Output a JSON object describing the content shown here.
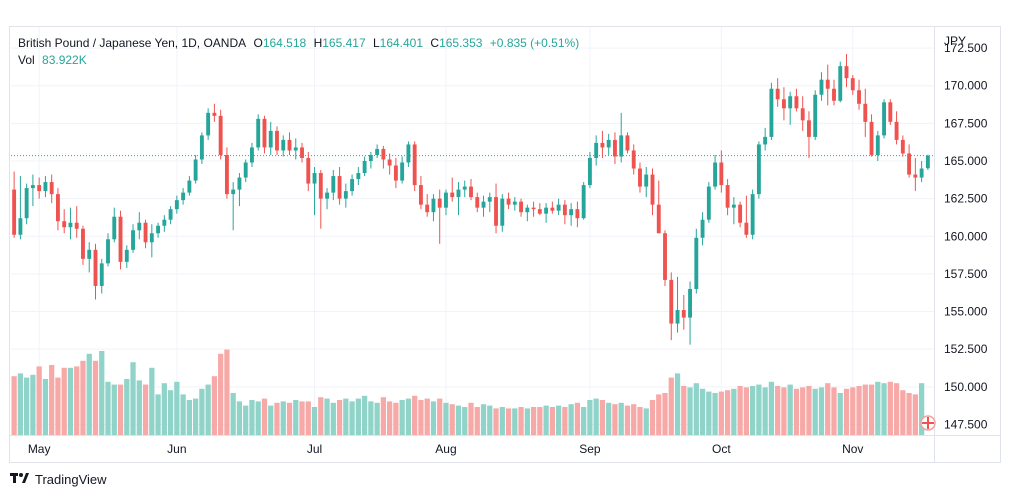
{
  "colors": {
    "up": "#26a69a",
    "down": "#ef5350",
    "vol_up": "#8fd3c9",
    "vol_down": "#f6a9a7",
    "grid": "#f0f3fa",
    "text": "#131722"
  },
  "legend": {
    "title": "British Pound / Japanese Yen, 1D, OANDA",
    "o_label": "O",
    "o_value": "164.518",
    "h_label": "H",
    "h_value": "165.417",
    "l_label": "L",
    "l_value": "164.401",
    "c_label": "C",
    "c_value": "165.353",
    "change": "+0.835 (+0.51%)",
    "vol_label": "Vol",
    "vol_value": "83.922K"
  },
  "footer": {
    "brand": "TradingView",
    "logo": "tradingview-logo-icon"
  },
  "chart_data": {
    "type": "candlestick",
    "currency_label": "JPY",
    "y_ticks": [
      "172.500",
      "170.000",
      "167.500",
      "165.000",
      "162.500",
      "160.000",
      "157.500",
      "155.000",
      "152.500",
      "150.000",
      "147.500"
    ],
    "ylim": [
      146.8,
      173.9
    ],
    "x_ticks": [
      "May",
      "Jun",
      "Jul",
      "Aug",
      "Sep",
      "Oct",
      "Nov"
    ],
    "x_tick_index": [
      4,
      26,
      48,
      69,
      92,
      113,
      134
    ],
    "last_price": 165.353,
    "candles": [
      [
        163.1,
        164.3,
        159.9,
        160.1
      ],
      [
        160.1,
        164.0,
        159.8,
        161.2
      ],
      [
        161.2,
        163.5,
        160.8,
        163.2
      ],
      [
        163.2,
        164.1,
        162.0,
        163.4
      ],
      [
        163.4,
        163.9,
        162.5,
        163.0
      ],
      [
        163.0,
        164.0,
        162.6,
        163.6
      ],
      [
        163.6,
        164.1,
        162.2,
        162.8
      ],
      [
        162.8,
        163.2,
        160.4,
        161.0
      ],
      [
        161.0,
        161.8,
        160.2,
        160.6
      ],
      [
        160.6,
        161.9,
        159.8,
        160.9
      ],
      [
        160.9,
        162.0,
        159.9,
        160.5
      ],
      [
        160.5,
        160.7,
        158.1,
        158.5
      ],
      [
        158.5,
        159.6,
        157.6,
        159.1
      ],
      [
        159.1,
        159.5,
        155.8,
        156.7
      ],
      [
        156.7,
        158.5,
        156.2,
        158.2
      ],
      [
        158.2,
        160.2,
        158.0,
        159.8
      ],
      [
        159.8,
        161.9,
        159.6,
        161.3
      ],
      [
        161.3,
        161.7,
        157.8,
        158.3
      ],
      [
        158.3,
        159.4,
        157.9,
        159.1
      ],
      [
        159.1,
        160.8,
        158.9,
        160.4
      ],
      [
        160.4,
        161.6,
        159.8,
        160.9
      ],
      [
        160.9,
        161.1,
        159.2,
        159.6
      ],
      [
        159.6,
        160.8,
        158.6,
        160.2
      ],
      [
        160.2,
        160.9,
        159.9,
        160.7
      ],
      [
        160.7,
        161.4,
        160.3,
        161.1
      ],
      [
        161.1,
        162.0,
        160.8,
        161.8
      ],
      [
        161.8,
        162.7,
        161.5,
        162.4
      ],
      [
        162.4,
        163.2,
        162.1,
        162.9
      ],
      [
        162.9,
        164.0,
        162.7,
        163.7
      ],
      [
        163.7,
        165.4,
        163.5,
        165.1
      ],
      [
        165.1,
        166.9,
        164.8,
        166.7
      ],
      [
        166.7,
        168.5,
        166.4,
        168.2
      ],
      [
        168.2,
        168.8,
        167.6,
        168.0
      ],
      [
        168.0,
        168.4,
        165.1,
        165.4
      ],
      [
        165.4,
        165.9,
        162.5,
        162.8
      ],
      [
        162.8,
        163.6,
        160.4,
        163.1
      ],
      [
        163.1,
        164.2,
        162.0,
        163.9
      ],
      [
        163.9,
        165.1,
        163.6,
        164.9
      ],
      [
        164.9,
        166.2,
        164.6,
        165.9
      ],
      [
        165.9,
        168.1,
        165.7,
        167.8
      ],
      [
        167.8,
        168.0,
        165.5,
        165.9
      ],
      [
        165.9,
        167.6,
        165.4,
        167.0
      ],
      [
        167.0,
        167.3,
        165.4,
        165.7
      ],
      [
        165.7,
        166.7,
        165.3,
        166.4
      ],
      [
        166.4,
        166.9,
        165.4,
        165.7
      ],
      [
        165.7,
        166.5,
        165.1,
        165.9
      ],
      [
        165.9,
        166.2,
        164.9,
        165.2
      ],
      [
        165.2,
        165.6,
        163.0,
        163.5
      ],
      [
        163.5,
        164.6,
        161.4,
        164.2
      ],
      [
        164.2,
        164.4,
        160.5,
        162.5
      ],
      [
        162.5,
        163.2,
        161.8,
        162.9
      ],
      [
        162.9,
        164.4,
        162.4,
        164.0
      ],
      [
        164.0,
        164.6,
        162.1,
        162.5
      ],
      [
        162.5,
        163.5,
        161.9,
        163.0
      ],
      [
        163.0,
        164.1,
        162.7,
        163.8
      ],
      [
        163.8,
        164.6,
        163.4,
        164.2
      ],
      [
        164.2,
        165.3,
        164.0,
        165.0
      ],
      [
        165.0,
        165.6,
        164.5,
        165.4
      ],
      [
        165.4,
        166.1,
        165.2,
        165.8
      ],
      [
        165.8,
        166.0,
        164.5,
        165.1
      ],
      [
        165.1,
        165.5,
        164.1,
        164.7
      ],
      [
        164.7,
        165.2,
        163.2,
        163.7
      ],
      [
        163.7,
        165.3,
        163.5,
        164.9
      ],
      [
        164.9,
        166.3,
        164.6,
        166.1
      ],
      [
        166.1,
        166.3,
        163.0,
        163.4
      ],
      [
        163.4,
        164.0,
        161.8,
        162.1
      ],
      [
        162.1,
        162.8,
        161.3,
        161.6
      ],
      [
        161.6,
        162.8,
        161.0,
        162.5
      ],
      [
        162.5,
        163.1,
        159.5,
        161.9
      ],
      [
        161.9,
        163.1,
        161.4,
        162.9
      ],
      [
        162.9,
        163.9,
        162.3,
        162.6
      ],
      [
        162.6,
        163.6,
        161.4,
        163.1
      ],
      [
        163.1,
        163.7,
        162.6,
        163.3
      ],
      [
        163.3,
        163.8,
        162.4,
        162.6
      ],
      [
        162.6,
        162.9,
        161.6,
        161.9
      ],
      [
        161.9,
        162.7,
        161.3,
        162.3
      ],
      [
        162.3,
        162.9,
        161.6,
        162.6
      ],
      [
        162.6,
        163.5,
        160.2,
        160.7
      ],
      [
        160.7,
        162.8,
        160.3,
        162.5
      ],
      [
        162.5,
        162.9,
        161.8,
        162.1
      ],
      [
        162.1,
        162.6,
        161.7,
        162.3
      ],
      [
        162.3,
        162.5,
        161.3,
        161.6
      ],
      [
        161.6,
        162.1,
        161.0,
        161.9
      ],
      [
        161.9,
        162.3,
        161.3,
        161.8
      ],
      [
        161.8,
        162.2,
        161.4,
        161.5
      ],
      [
        161.5,
        162.2,
        160.9,
        161.9
      ],
      [
        161.9,
        162.3,
        161.5,
        161.7
      ],
      [
        161.7,
        162.5,
        161.4,
        162.1
      ],
      [
        162.1,
        162.4,
        160.8,
        161.4
      ],
      [
        161.4,
        162.2,
        160.7,
        161.8
      ],
      [
        161.8,
        162.3,
        160.6,
        161.2
      ],
      [
        161.2,
        163.6,
        161.1,
        163.4
      ],
      [
        163.4,
        165.6,
        163.2,
        165.2
      ],
      [
        165.2,
        166.7,
        164.7,
        166.2
      ],
      [
        166.2,
        167.0,
        165.2,
        165.9
      ],
      [
        165.9,
        166.8,
        165.4,
        166.4
      ],
      [
        166.4,
        166.9,
        164.8,
        165.3
      ],
      [
        165.3,
        168.2,
        164.9,
        166.7
      ],
      [
        166.7,
        166.9,
        165.5,
        165.7
      ],
      [
        165.7,
        166.1,
        164.1,
        164.5
      ],
      [
        164.5,
        164.9,
        162.9,
        163.3
      ],
      [
        163.3,
        164.6,
        162.6,
        164.1
      ],
      [
        164.1,
        164.5,
        161.4,
        162.1
      ],
      [
        162.1,
        163.7,
        160.4,
        160.2
      ],
      [
        160.2,
        160.4,
        156.7,
        157.1
      ],
      [
        157.1,
        157.6,
        153.1,
        154.2
      ],
      [
        154.2,
        157.3,
        153.6,
        155.1
      ],
      [
        155.1,
        156.1,
        153.8,
        154.6
      ],
      [
        154.6,
        157.0,
        152.8,
        156.5
      ],
      [
        156.5,
        160.5,
        156.2,
        159.9
      ],
      [
        159.9,
        161.6,
        159.4,
        161.1
      ],
      [
        161.1,
        163.6,
        160.9,
        163.3
      ],
      [
        163.3,
        165.4,
        163.1,
        164.9
      ],
      [
        164.9,
        165.7,
        162.9,
        163.4
      ],
      [
        163.4,
        163.8,
        161.4,
        161.9
      ],
      [
        161.9,
        162.6,
        160.8,
        162.1
      ],
      [
        162.1,
        162.3,
        160.6,
        160.9
      ],
      [
        160.9,
        162.7,
        159.9,
        160.1
      ],
      [
        160.1,
        163.1,
        159.8,
        162.8
      ],
      [
        162.8,
        166.3,
        162.5,
        166.1
      ],
      [
        166.1,
        167.2,
        165.7,
        166.6
      ],
      [
        166.6,
        170.2,
        166.4,
        169.8
      ],
      [
        169.8,
        170.5,
        168.6,
        169.1
      ],
      [
        169.1,
        169.9,
        167.7,
        168.5
      ],
      [
        168.5,
        169.6,
        167.4,
        169.3
      ],
      [
        169.3,
        169.8,
        168.3,
        168.5
      ],
      [
        168.5,
        169.3,
        167.0,
        167.7
      ],
      [
        167.7,
        168.3,
        165.2,
        166.6
      ],
      [
        166.6,
        169.7,
        166.4,
        169.4
      ],
      [
        169.4,
        170.9,
        169.0,
        170.4
      ],
      [
        170.4,
        171.4,
        168.7,
        169.8
      ],
      [
        169.8,
        170.4,
        168.7,
        169.0
      ],
      [
        169.0,
        171.6,
        168.9,
        171.3
      ],
      [
        171.3,
        172.1,
        169.9,
        170.5
      ],
      [
        170.5,
        170.7,
        169.4,
        169.7
      ],
      [
        169.7,
        170.4,
        168.4,
        168.8
      ],
      [
        168.8,
        169.8,
        166.6,
        167.6
      ],
      [
        167.6,
        168.1,
        165.3,
        165.4
      ],
      [
        165.4,
        167.0,
        165.0,
        166.7
      ],
      [
        166.7,
        169.1,
        166.5,
        168.9
      ],
      [
        168.9,
        169.1,
        167.4,
        167.6
      ],
      [
        167.6,
        168.3,
        166.1,
        166.4
      ],
      [
        166.4,
        166.7,
        165.3,
        165.5
      ],
      [
        165.5,
        166.1,
        163.9,
        164.1
      ],
      [
        164.1,
        165.2,
        163.0,
        163.9
      ],
      [
        163.9,
        165.0,
        163.6,
        164.5
      ],
      [
        164.518,
        165.417,
        164.401,
        165.353
      ]
    ],
    "volume_ratio": [
      0.42,
      0.44,
      0.41,
      0.43,
      0.49,
      0.4,
      0.5,
      0.41,
      0.48,
      0.48,
      0.49,
      0.53,
      0.58,
      0.53,
      0.6,
      0.38,
      0.36,
      0.36,
      0.4,
      0.52,
      0.39,
      0.36,
      0.48,
      0.29,
      0.37,
      0.32,
      0.38,
      0.29,
      0.25,
      0.26,
      0.33,
      0.36,
      0.42,
      0.58,
      0.61,
      0.3,
      0.24,
      0.21,
      0.25,
      0.24,
      0.26,
      0.21,
      0.23,
      0.24,
      0.23,
      0.25,
      0.24,
      0.24,
      0.2,
      0.27,
      0.26,
      0.23,
      0.25,
      0.26,
      0.24,
      0.26,
      0.28,
      0.24,
      0.23,
      0.27,
      0.24,
      0.23,
      0.25,
      0.26,
      0.28,
      0.25,
      0.26,
      0.24,
      0.26,
      0.23,
      0.22,
      0.21,
      0.2,
      0.23,
      0.2,
      0.22,
      0.21,
      0.19,
      0.2,
      0.19,
      0.19,
      0.2,
      0.19,
      0.2,
      0.2,
      0.21,
      0.2,
      0.21,
      0.2,
      0.22,
      0.23,
      0.2,
      0.25,
      0.26,
      0.25,
      0.23,
      0.22,
      0.23,
      0.21,
      0.22,
      0.2,
      0.19,
      0.25,
      0.29,
      0.3,
      0.41,
      0.44,
      0.35,
      0.34,
      0.37,
      0.33,
      0.31,
      0.3,
      0.31,
      0.32,
      0.33,
      0.35,
      0.34,
      0.35,
      0.36,
      0.34,
      0.38,
      0.35,
      0.34,
      0.36,
      0.33,
      0.34,
      0.35,
      0.33,
      0.34,
      0.37,
      0.34,
      0.3,
      0.33,
      0.34,
      0.35,
      0.36,
      0.36,
      0.38,
      0.37,
      0.38,
      0.37,
      0.32,
      0.3,
      0.29,
      0.37
    ]
  }
}
